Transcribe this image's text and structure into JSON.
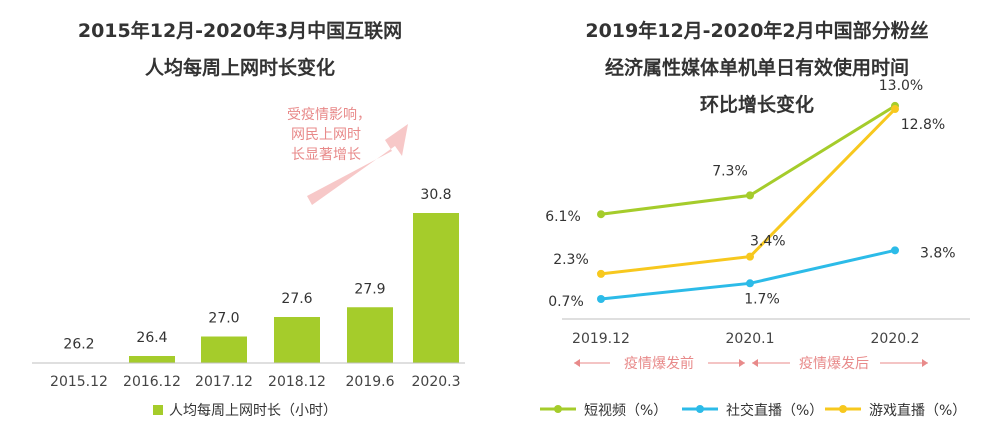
{
  "chart_data": [
    {
      "type": "bar",
      "title_lines": [
        "2015年12月-2020年3月中国互联网",
        "人均每周上网时长变化"
      ],
      "categories": [
        "2015.12",
        "2016.12",
        "2017.12",
        "2018.12",
        "2019.6",
        "2020.3"
      ],
      "values": [
        26.2,
        26.4,
        27.0,
        27.6,
        27.9,
        30.8
      ],
      "value_labels": [
        "26.2",
        "26.4",
        "27.0",
        "27.6",
        "27.9",
        "30.8"
      ],
      "legend": "人均每周上网时长（小时）",
      "annotation_lines": [
        "受疫情影响，",
        "网民上网时",
        "长显著增长"
      ],
      "bar_color": "#a5cc2b",
      "annotation_color": "#e88a8a"
    },
    {
      "type": "line",
      "title_lines": [
        "2019年12月-2020年2月中国部分粉丝",
        "经济属性媒体单机单日有效使用时间",
        "环比增长变化"
      ],
      "categories": [
        "2019.12",
        "2020.1",
        "2020.2"
      ],
      "series": [
        {
          "name": "短视频（%）",
          "values": [
            6.1,
            7.3,
            13.0
          ],
          "labels": [
            "6.1%",
            "7.3%",
            "13.0%"
          ],
          "color": "#a5cc2b"
        },
        {
          "name": "社交直播（%）",
          "values": [
            0.7,
            1.7,
            3.8
          ],
          "labels": [
            "0.7%",
            "1.7%",
            "3.8%"
          ],
          "color": "#2cbbe8"
        },
        {
          "name": "游戏直播（%）",
          "values": [
            2.3,
            3.4,
            12.8
          ],
          "labels": [
            "2.3%",
            "3.4%",
            "12.8%"
          ],
          "color": "#f7c81e"
        }
      ],
      "period_labels": [
        "疫情爆发前",
        "疫情爆发后"
      ],
      "period_color": "#e88a8a"
    }
  ]
}
